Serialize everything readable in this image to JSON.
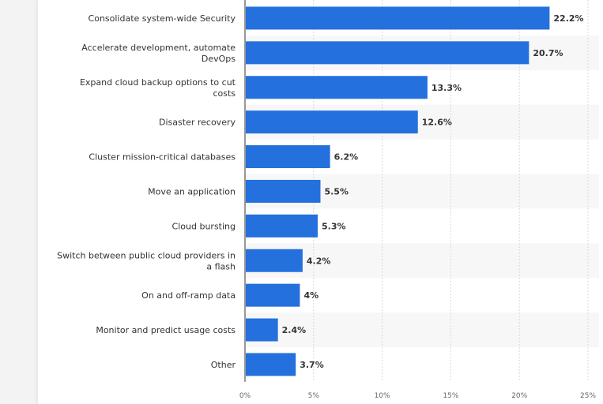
{
  "chart_data": {
    "type": "bar",
    "orientation": "horizontal",
    "categories": [
      [
        "Consolidate system-wide Security"
      ],
      [
        "Accelerate development, automate",
        "DevOps"
      ],
      [
        "Expand cloud backup options to cut",
        "costs"
      ],
      [
        "Disaster recovery"
      ],
      [
        "Cluster mission-critical databases"
      ],
      [
        "Move an application"
      ],
      [
        "Cloud bursting"
      ],
      [
        "Switch between public cloud providers in",
        "a flash"
      ],
      [
        "On and off-ramp data"
      ],
      [
        "Monitor and predict usage costs"
      ],
      [
        "Other"
      ]
    ],
    "values": [
      22.2,
      20.7,
      13.3,
      12.6,
      6.2,
      5.5,
      5.3,
      4.2,
      4,
      2.4,
      3.7
    ],
    "value_labels": [
      "22.2%",
      "20.7%",
      "13.3%",
      "12.6%",
      "6.2%",
      "5.5%",
      "5.3%",
      "4.2%",
      "4%",
      "2.4%",
      "3.7%"
    ],
    "xlim": [
      0,
      25
    ],
    "xticks": [
      0,
      5,
      10,
      15,
      20,
      25
    ],
    "xtick_labels": [
      "0%",
      "5%",
      "10%",
      "15%",
      "20%",
      "25%"
    ],
    "grid": true,
    "bar_color": "#2470dd",
    "band_color": "#f7f7f7"
  }
}
